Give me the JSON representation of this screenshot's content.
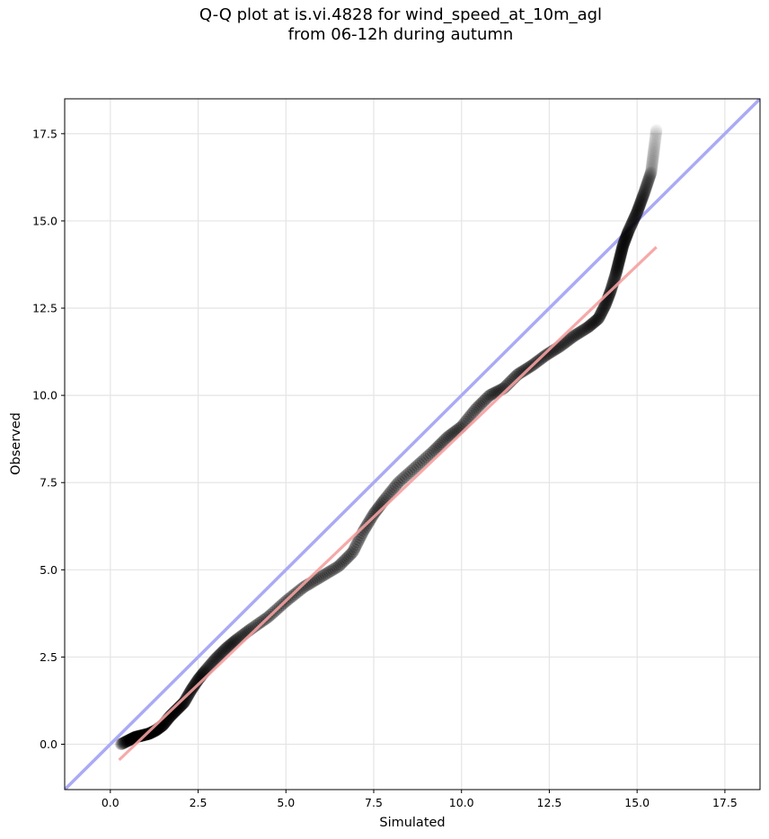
{
  "chart_data": {
    "type": "scatter",
    "title_line1": "Q-Q plot at is.vi.4828 for wind_speed_at_10m_agl",
    "title_line2": "from 06-12h during autumn",
    "xlabel": "Simulated",
    "ylabel": "Observed",
    "xlim": [
      -1.3,
      18.5
    ],
    "ylim": [
      -1.3,
      18.5
    ],
    "xticks": [
      "0.0",
      "2.5",
      "5.0",
      "7.5",
      "10.0",
      "12.5",
      "15.0",
      "17.5"
    ],
    "yticks": [
      "0.0",
      "2.5",
      "5.0",
      "7.5",
      "10.0",
      "12.5",
      "15.0",
      "17.5"
    ],
    "grid": true,
    "colors": {
      "points": "#000000",
      "identity_line": "#aaaaf5",
      "fit_line": "#f5a0a0"
    },
    "identity_line": {
      "x": [
        -1.3,
        18.5
      ],
      "y": [
        -1.3,
        18.5
      ]
    },
    "fit_line": {
      "x": [
        0.25,
        15.55
      ],
      "y": [
        -0.45,
        14.25
      ]
    },
    "quantile_curve": [
      [
        0.3,
        0.0
      ],
      [
        0.5,
        0.1
      ],
      [
        0.7,
        0.2
      ],
      [
        0.9,
        0.25
      ],
      [
        1.1,
        0.3
      ],
      [
        1.3,
        0.4
      ],
      [
        1.5,
        0.55
      ],
      [
        1.7,
        0.8
      ],
      [
        1.9,
        1.0
      ],
      [
        2.1,
        1.2
      ],
      [
        2.3,
        1.55
      ],
      [
        2.5,
        1.85
      ],
      [
        2.7,
        2.1
      ],
      [
        3.0,
        2.45
      ],
      [
        3.3,
        2.75
      ],
      [
        3.6,
        3.0
      ],
      [
        4.0,
        3.3
      ],
      [
        4.5,
        3.65
      ],
      [
        5.0,
        4.1
      ],
      [
        5.5,
        4.5
      ],
      [
        6.0,
        4.8
      ],
      [
        6.5,
        5.1
      ],
      [
        6.9,
        5.5
      ],
      [
        7.2,
        6.1
      ],
      [
        7.5,
        6.6
      ],
      [
        7.8,
        7.0
      ],
      [
        8.2,
        7.5
      ],
      [
        8.7,
        7.95
      ],
      [
        9.2,
        8.4
      ],
      [
        9.6,
        8.8
      ],
      [
        10.0,
        9.1
      ],
      [
        10.4,
        9.6
      ],
      [
        10.8,
        10.0
      ],
      [
        11.2,
        10.2
      ],
      [
        11.6,
        10.6
      ],
      [
        12.0,
        10.85
      ],
      [
        12.4,
        11.15
      ],
      [
        12.8,
        11.4
      ],
      [
        13.2,
        11.7
      ],
      [
        13.6,
        11.95
      ],
      [
        13.9,
        12.2
      ],
      [
        14.1,
        12.6
      ],
      [
        14.25,
        13.0
      ],
      [
        14.4,
        13.5
      ],
      [
        14.5,
        13.9
      ],
      [
        14.6,
        14.3
      ],
      [
        14.75,
        14.7
      ],
      [
        15.0,
        15.25
      ],
      [
        15.2,
        15.8
      ],
      [
        15.4,
        16.4
      ],
      [
        15.55,
        17.6
      ]
    ]
  }
}
